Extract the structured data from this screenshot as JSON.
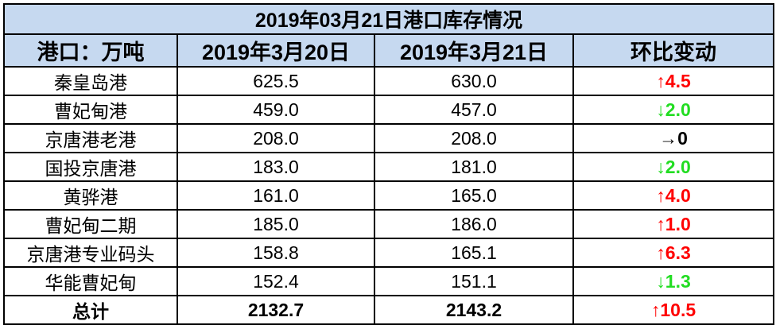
{
  "title": "2019年03月21日港口库存情况",
  "header": [
    "港口：万吨",
    "2019年3月20日",
    "2019年3月21日",
    "环比变动"
  ],
  "rows": [
    {
      "cells": [
        "秦皇岛港",
        "625.5",
        "630.0",
        "↑4.5"
      ],
      "change_color": "#ff0000"
    },
    {
      "cells": [
        "曹妃甸港",
        "459.0",
        "457.0",
        "↓2.0"
      ],
      "change_color": "#22dd22"
    },
    {
      "cells": [
        "京唐港老港",
        "208.0",
        "208.0",
        "→0"
      ],
      "change_color": "#000000"
    },
    {
      "cells": [
        "国投京唐港",
        "183.0",
        "181.0",
        "↓2.0"
      ],
      "change_color": "#22dd22"
    },
    {
      "cells": [
        "黄骅港",
        "161.0",
        "165.0",
        "↑4.0"
      ],
      "change_color": "#ff0000"
    },
    {
      "cells": [
        "曹妃甸二期",
        "185.0",
        "186.0",
        "↑1.0"
      ],
      "change_color": "#ff0000"
    },
    {
      "cells": [
        "京唐港专业码头",
        "158.8",
        "165.1",
        "↑6.3"
      ],
      "change_color": "#ff0000"
    },
    {
      "cells": [
        "华能曹妃甸",
        "152.4",
        "151.1",
        "↓1.3"
      ],
      "change_color": "#22dd22"
    }
  ],
  "total": {
    "cells": [
      "总计",
      "2132.7",
      "2143.2",
      "↑10.5"
    ],
    "change_color": "#ff0000"
  }
}
